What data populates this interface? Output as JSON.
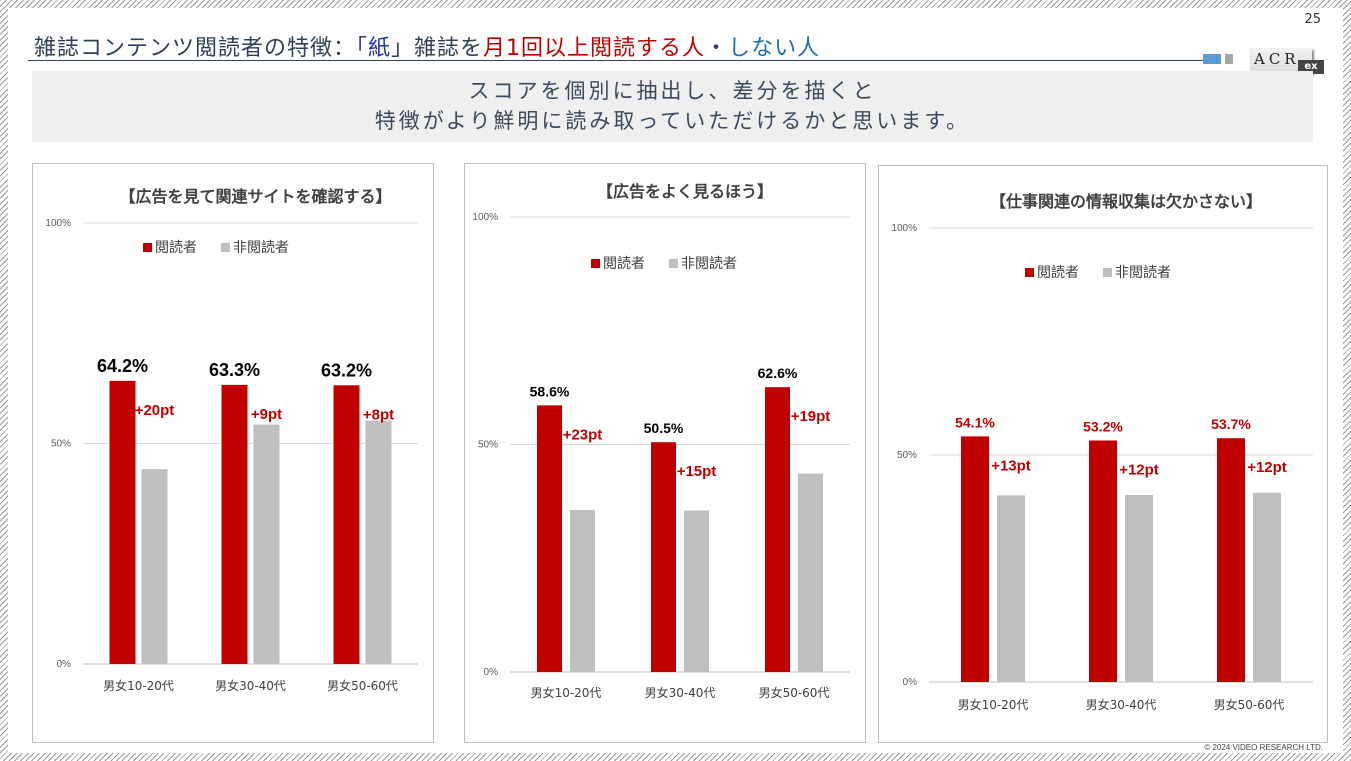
{
  "page_number": "25",
  "title": {
    "part1": "雑誌コンテンツ閲読者の特徴：「",
    "paper": "紙",
    "part2": "」雑誌を",
    "readers": "月1回以上閲読する人",
    "sep": "・",
    "nonreaders": "しない人"
  },
  "logo": "ACR",
  "logo_suffix": "ex",
  "lead": {
    "line1": "スコアを個別に抽出し、差分を描くと",
    "line2": "特徴がより鮮明に読み取っていただけるかと思います。"
  },
  "copyright": "© 2024 VIDEO RESEARCH LTD.",
  "colors": {
    "reader": "#c00000",
    "nonreader": "#bfbfbf",
    "diff": "#c00000"
  },
  "chart_data": [
    {
      "type": "bar",
      "title": "【広告を見て関連サイトを確認する】",
      "categories": [
        "男女10-20代",
        "男女30-40代",
        "男女50-60代"
      ],
      "series": [
        {
          "name": "閲読者",
          "values": [
            64.2,
            63.3,
            63.2
          ]
        },
        {
          "name": "非閲読者",
          "values": [
            44.2,
            54.3,
            55.2
          ]
        }
      ],
      "value_labels": [
        "64.2%",
        "63.3%",
        "63.2%"
      ],
      "diff_labels": [
        "+20pt",
        "+9pt",
        "+8pt"
      ],
      "value_label_color": "#000000",
      "yticks": [
        "0%",
        "50%",
        "100%"
      ],
      "ylim": [
        0,
        100
      ],
      "legend": "top"
    },
    {
      "type": "bar",
      "title": "【広告をよく見るほう】",
      "categories": [
        "男女10-20代",
        "男女30-40代",
        "男女50-60代"
      ],
      "series": [
        {
          "name": "閲読者",
          "values": [
            58.6,
            50.5,
            62.6
          ]
        },
        {
          "name": "非閲読者",
          "values": [
            35.6,
            35.5,
            43.6
          ]
        }
      ],
      "value_labels": [
        "58.6%",
        "50.5%",
        "62.6%"
      ],
      "diff_labels": [
        "+23pt",
        "+15pt",
        "+19pt"
      ],
      "value_label_color": "#000000",
      "yticks": [
        "0%",
        "50%",
        "100%"
      ],
      "ylim": [
        0,
        100
      ],
      "legend": "top"
    },
    {
      "type": "bar",
      "title": "【仕事関連の情報収集は欠かさない】",
      "categories": [
        "男女10-20代",
        "男女30-40代",
        "男女50-60代"
      ],
      "series": [
        {
          "name": "閲読者",
          "values": [
            54.1,
            53.2,
            53.7
          ]
        },
        {
          "name": "非閲読者",
          "values": [
            41.1,
            41.2,
            41.7
          ]
        }
      ],
      "value_labels": [
        "54.1%",
        "53.2%",
        "53.7%"
      ],
      "diff_labels": [
        "+13pt",
        "+12pt",
        "+12pt"
      ],
      "value_label_color": "#c00000",
      "yticks": [
        "0%",
        "50%",
        "100%"
      ],
      "ylim": [
        0,
        100
      ],
      "legend": "top"
    }
  ]
}
